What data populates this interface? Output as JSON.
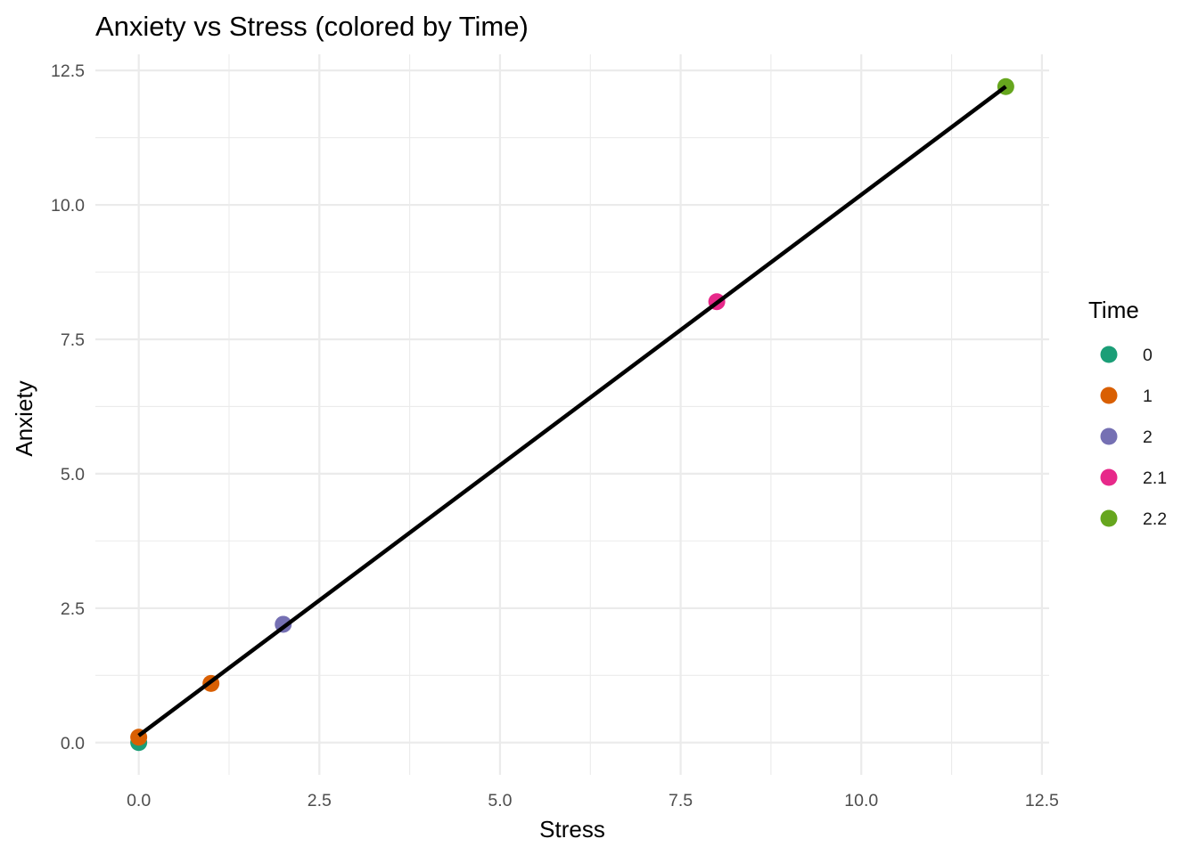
{
  "chart_data": {
    "type": "scatter",
    "title": "Anxiety vs Stress (colored by Time)",
    "xlabel": "Stress",
    "ylabel": "Anxiety",
    "xlim": [
      -0.6,
      12.6
    ],
    "ylim": [
      -0.6,
      12.8
    ],
    "x_ticks": [
      0,
      2.5,
      5,
      7.5,
      10,
      12.5
    ],
    "x_tick_labels": [
      "0.0",
      "2.5",
      "5.0",
      "7.5",
      "10.0",
      "12.5"
    ],
    "y_ticks": [
      0,
      2.5,
      5,
      7.5,
      10,
      12.5
    ],
    "y_tick_labels": [
      "0.0",
      "2.5",
      "5.0",
      "7.5",
      "10.0",
      "12.5"
    ],
    "grid": true,
    "legend": {
      "title": "Time",
      "placement": "right",
      "entries": [
        {
          "label": "0",
          "color": "#1b9e77"
        },
        {
          "label": "1",
          "color": "#d95f02"
        },
        {
          "label": "2",
          "color": "#7570b3"
        },
        {
          "label": "2.1",
          "color": "#e7298a"
        },
        {
          "label": "2.2",
          "color": "#66a61e"
        }
      ]
    },
    "series": [
      {
        "name": "0",
        "color": "#1b9e77",
        "points": [
          {
            "x": 0,
            "y": 0
          }
        ]
      },
      {
        "name": "1",
        "color": "#d95f02",
        "points": [
          {
            "x": 0,
            "y": 0.1
          },
          {
            "x": 1,
            "y": 1.1
          }
        ]
      },
      {
        "name": "2",
        "color": "#7570b3",
        "points": [
          {
            "x": 2,
            "y": 2.2
          }
        ]
      },
      {
        "name": "2.1",
        "color": "#e7298a",
        "points": [
          {
            "x": 8,
            "y": 8.2
          }
        ]
      },
      {
        "name": "2.2",
        "color": "#66a61e",
        "points": [
          {
            "x": 12,
            "y": 12.2
          }
        ]
      }
    ],
    "fit_line": {
      "color": "#000000",
      "from": {
        "x": 0,
        "y": 0.13
      },
      "to": {
        "x": 12,
        "y": 12.2
      }
    }
  }
}
